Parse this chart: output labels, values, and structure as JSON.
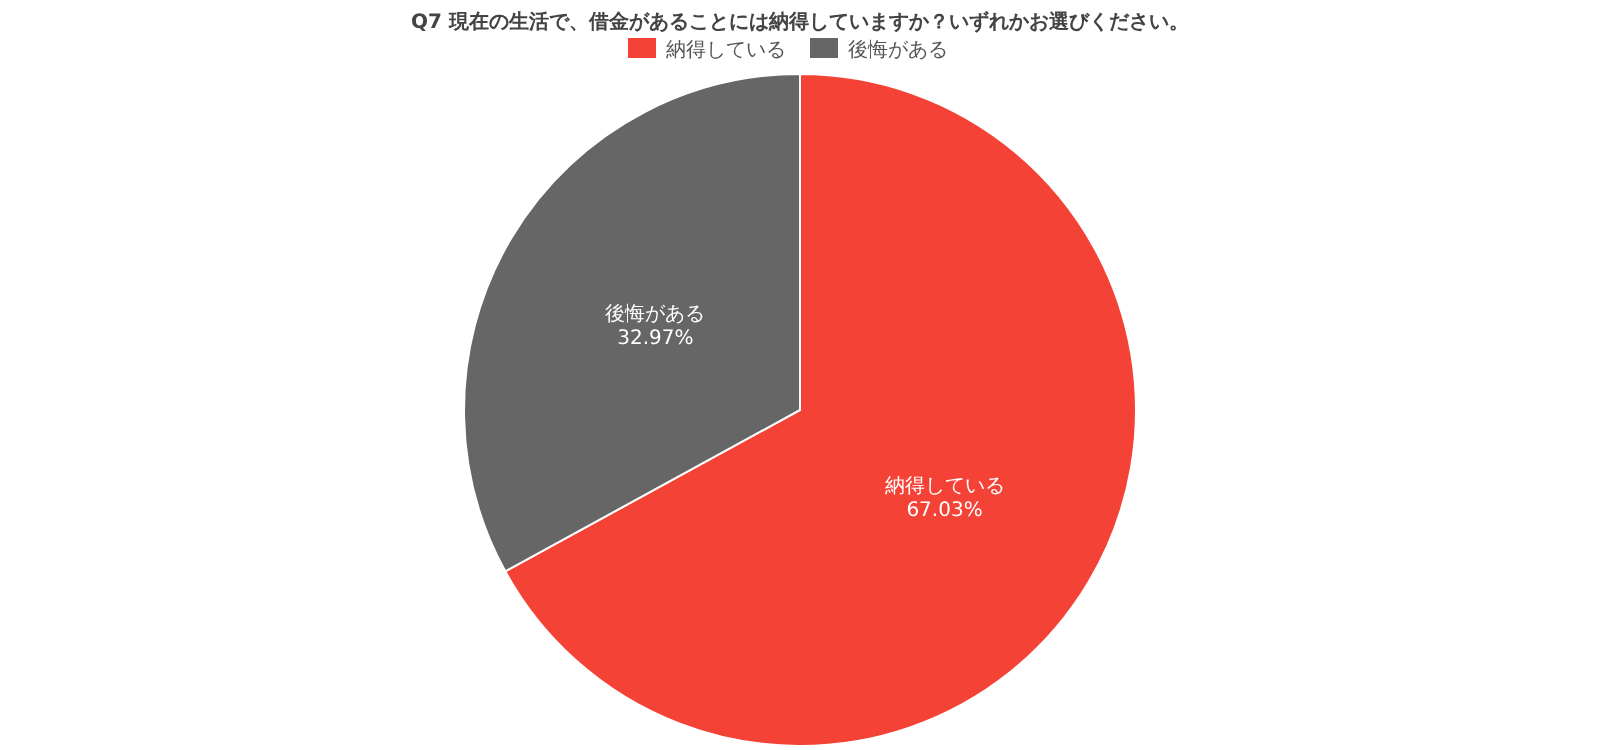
{
  "chart_data": {
    "type": "pie",
    "title": "Q7 現在の生活で、借金があることには納得していますか？いずれかお選びください。",
    "categories": [
      "納得している",
      "後悔がある"
    ],
    "values": [
      67.03,
      32.97
    ],
    "colors": [
      "#f44336",
      "#666666"
    ],
    "value_labels": [
      "67.03%",
      "32.97%"
    ],
    "legend": "top"
  }
}
